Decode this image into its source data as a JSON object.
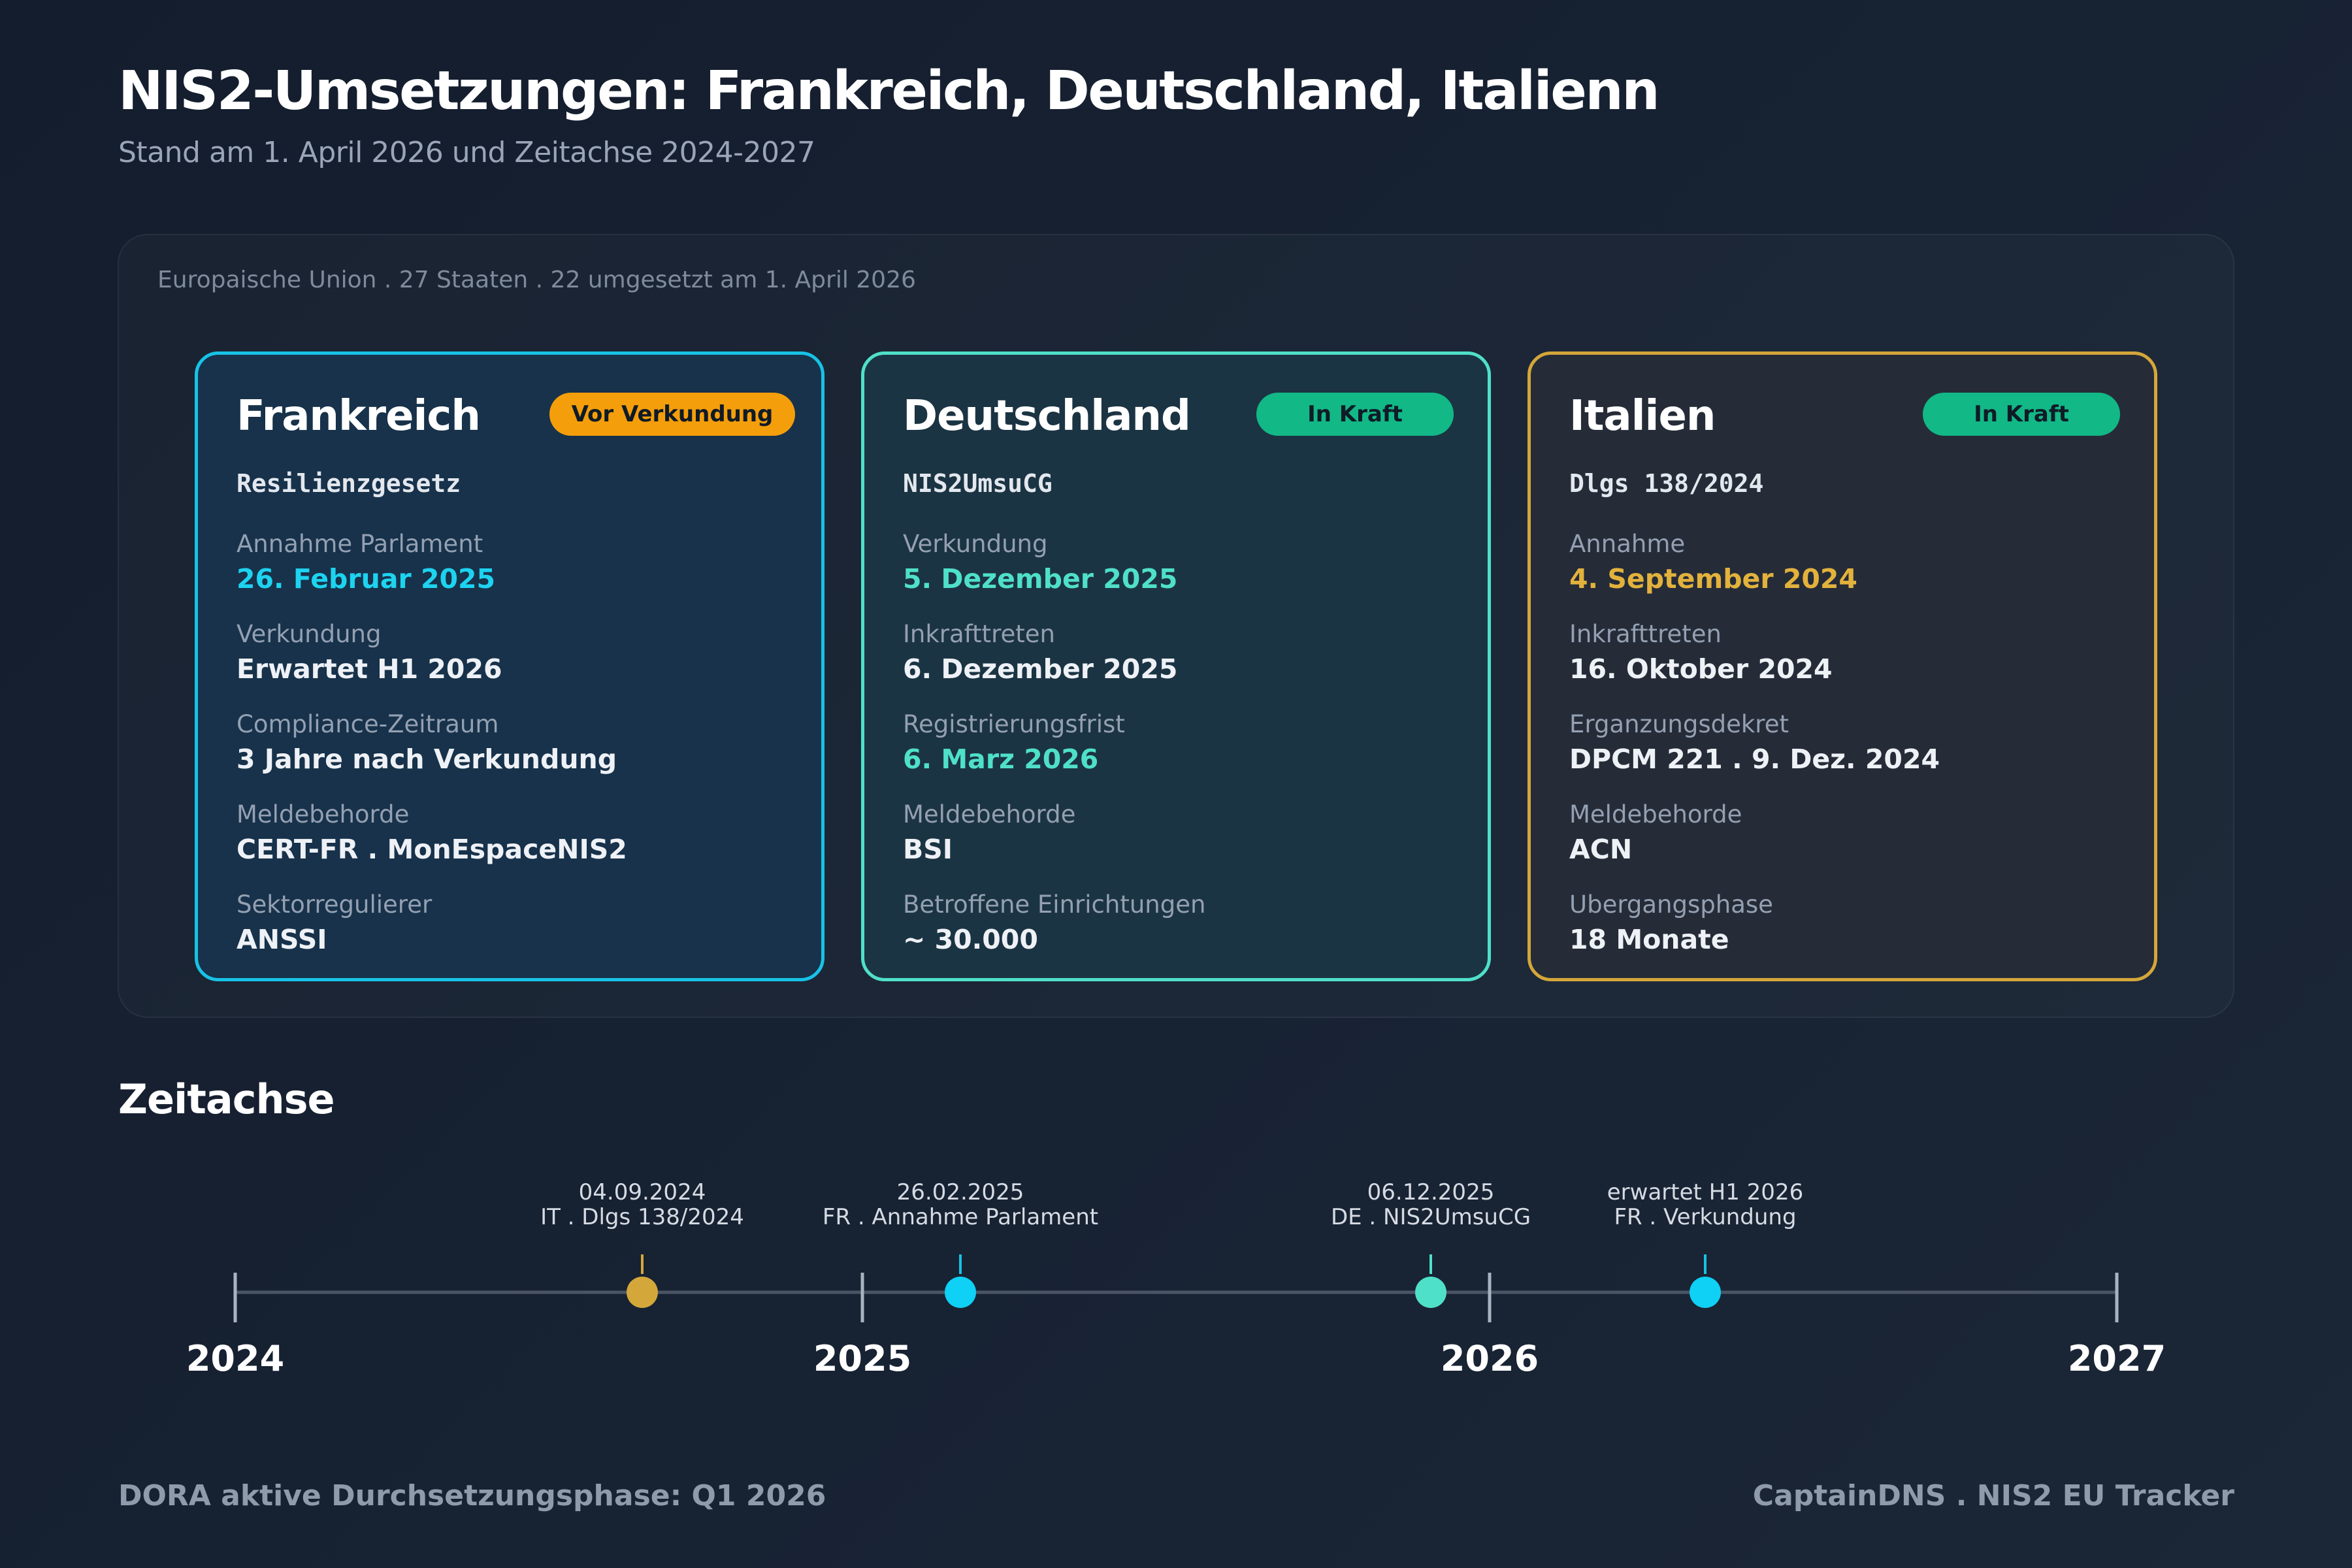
{
  "header": {
    "title": "NIS2-Umsetzungen: Frankreich, Deutschland, Italienn",
    "subtitle": "Stand am 1. April 2026 und Zeitachse 2024-2027"
  },
  "panel": {
    "header": "Europaische Union . 27 Staaten . 22 umgesetzt am 1. April 2026"
  },
  "cards": [
    {
      "name": "Frankreich",
      "badge": "Vor Verkundung",
      "law": "Resilienzgesetz",
      "fields": [
        {
          "label": "Annahme Parlament",
          "value": "26. Februar 2025"
        },
        {
          "label": "Verkundung",
          "value": "Erwartet H1 2026"
        },
        {
          "label": "Compliance-Zeitraum",
          "value": "3 Jahre nach Verkundung"
        },
        {
          "label": "Meldebehorde",
          "value": "CERT-FR . MonEspaceNIS2"
        },
        {
          "label": "Sektorregulierer",
          "value": "ANSSI"
        }
      ]
    },
    {
      "name": "Deutschland",
      "badge": "In Kraft",
      "law": "NIS2UmsuCG",
      "fields": [
        {
          "label": "Verkundung",
          "value": "5. Dezember 2025"
        },
        {
          "label": "Inkrafttreten",
          "value": "6. Dezember 2025"
        },
        {
          "label": "Registrierungsfrist",
          "value": "6. Marz 2026"
        },
        {
          "label": "Meldebehorde",
          "value": "BSI"
        },
        {
          "label": "Betroffene Einrichtungen",
          "value": "~ 30.000"
        }
      ]
    },
    {
      "name": "Italien",
      "badge": "In Kraft",
      "law": "Dlgs 138/2024",
      "fields": [
        {
          "label": "Annahme",
          "value": "4. September 2024"
        },
        {
          "label": "Inkrafttreten",
          "value": "16. Oktober 2024"
        },
        {
          "label": "Erganzungsdekret",
          "value": "DPCM 221 . 9. Dez. 2024"
        },
        {
          "label": "Meldebehorde",
          "value": "ACN"
        },
        {
          "label": "Ubergangsphase",
          "value": "18 Monate"
        }
      ]
    }
  ],
  "colors": {
    "france": "#18c2e6",
    "germany": "#4fe0c9",
    "italy": "#d4a73a",
    "badge_pending": "#f59e0b",
    "badge_active": "#12b886"
  },
  "timeline": {
    "title": "Zeitachse",
    "years": [
      "2024",
      "2025",
      "2026",
      "2027"
    ],
    "events": [
      {
        "date": "04.09.2024",
        "label": "IT . Dlgs 138/2024",
        "country": "italy"
      },
      {
        "date": "26.02.2025",
        "label": "FR . Annahme Parlament",
        "country": "france"
      },
      {
        "date": "06.12.2025",
        "label": "DE . NIS2UmsuCG",
        "country": "germany"
      },
      {
        "date": "erwartet H1 2026",
        "label": "FR . Verkundung",
        "country": "france"
      }
    ]
  },
  "footer": {
    "left": "DORA aktive Durchsetzungsphase: Q1 2026",
    "right": "CaptainDNS . NIS2 EU Tracker"
  }
}
